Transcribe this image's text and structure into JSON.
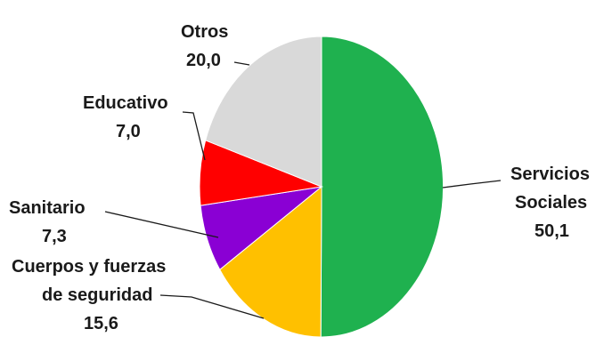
{
  "chart_data": {
    "type": "pie",
    "title": "",
    "slices": [
      {
        "name": "Servicios Sociales",
        "label_lines": [
          "Servicios",
          "Sociales"
        ],
        "value_text": "50,1",
        "value": 50.1,
        "color": "#1fb14f"
      },
      {
        "name": "Cuerpos y fuerzas de seguridad",
        "label_lines": [
          "Cuerpos y fuerzas",
          "de seguridad"
        ],
        "value_text": "15,6",
        "value": 15.6,
        "color": "#ffc000"
      },
      {
        "name": "Sanitario",
        "label_lines": [
          "Sanitario"
        ],
        "value_text": "7,3",
        "value": 7.3,
        "color": "#8a00d4"
      },
      {
        "name": "Educativo",
        "label_lines": [
          "Educativo"
        ],
        "value_text": "7,0",
        "value": 7.0,
        "color": "#ff0000"
      },
      {
        "name": "Otros",
        "label_lines": [
          "Otros"
        ],
        "value_text": "20,0",
        "value": 20.0,
        "color": "#d9d9d9"
      }
    ]
  }
}
